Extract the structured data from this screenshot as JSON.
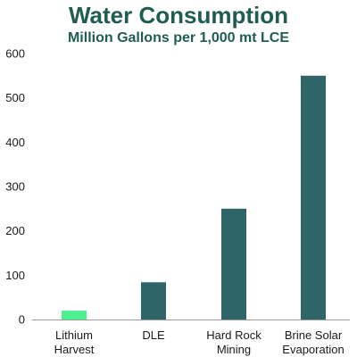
{
  "chart_data": {
    "type": "bar",
    "title": "Water Consumption",
    "subtitle": "Million Gallons per 1,000 mt LCE",
    "categories": [
      [
        "Lithium",
        "Harvest"
      ],
      [
        "DLE"
      ],
      [
        "Hard Rock",
        "Mining"
      ],
      [
        "Brine Solar",
        "Evaporation"
      ]
    ],
    "values": [
      20,
      84,
      250,
      550
    ],
    "bar_colors": [
      "#4cf08f",
      "#2f6468",
      "#2f6468",
      "#2f6468"
    ],
    "title_color": "#1f5c52",
    "ylim": [
      0,
      600
    ],
    "yticks": [
      0,
      100,
      200,
      300,
      400,
      500,
      600
    ],
    "grid": false,
    "xlabel": "",
    "ylabel": ""
  }
}
